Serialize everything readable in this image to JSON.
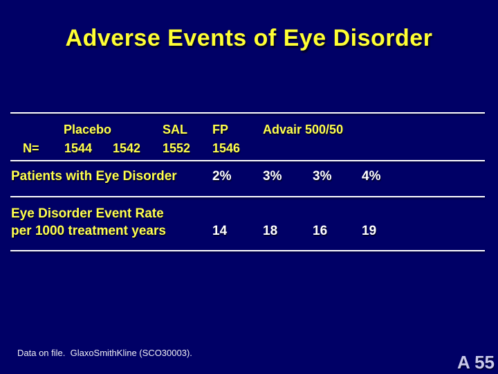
{
  "slide": {
    "title": "Adverse Events of Eye Disorder",
    "table": {
      "n_label": "N=",
      "col_headers": {
        "placebo": "Placebo",
        "sal": "SAL",
        "fp": "FP",
        "advair": "Advair 500/50"
      },
      "n_values": {
        "placebo_1": "1544",
        "placebo_2": "1542",
        "sal": "1552",
        "fp": "1546"
      },
      "rows": [
        {
          "label_line1": "Patients with Eye Disorder",
          "label_line2": "",
          "values": [
            "2%",
            "3%",
            "3%",
            "4%"
          ]
        },
        {
          "label_line1": "Eye Disorder Event Rate",
          "label_line2": "per 1000 treatment years",
          "values": [
            "14",
            "18",
            "16",
            "19"
          ]
        }
      ]
    },
    "footer": "Data on file.  GlaxoSmithKline (SCO30003).",
    "slide_number": "A 55",
    "colors": {
      "background": "#000066",
      "title": "#ffff33",
      "table_text": "#ffff4d",
      "values": "#ffffff",
      "rules": "#ffffff",
      "slide_number": "#c8c8ea"
    }
  }
}
